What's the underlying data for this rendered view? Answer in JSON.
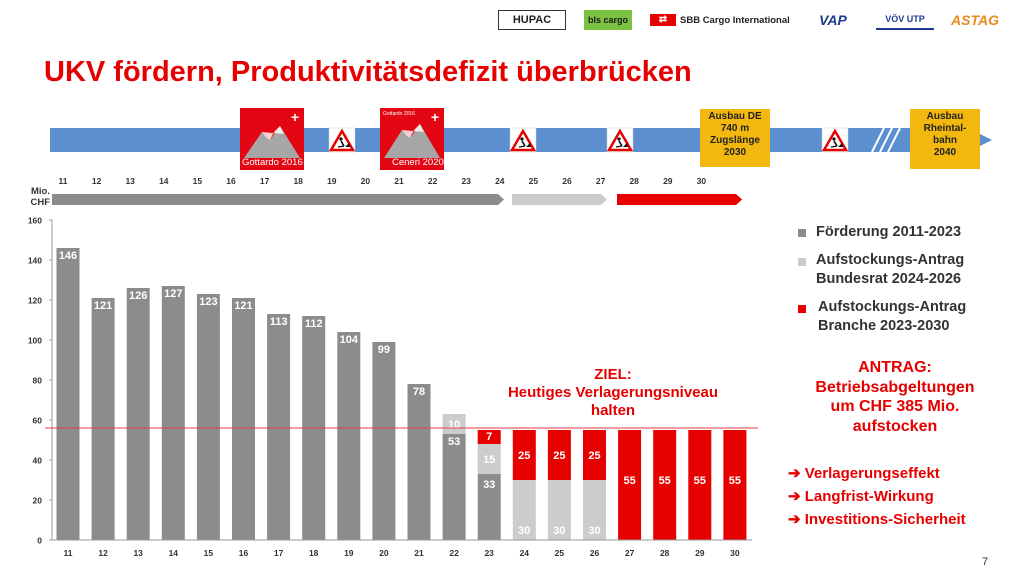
{
  "logos": [
    "HUPAC",
    "bls cargo",
    "SBB Cargo International",
    "VAP",
    "VÖV UTP",
    "ASTAG"
  ],
  "title": "UKV fördern, Produktivitätsdefizit überbrücken",
  "timeline": {
    "gottardo_label": "Gottardo 2016",
    "ceneri_label": "Ceneri 2020",
    "ceneri_small": "Gottardo 2016",
    "milestone_de": [
      "Ausbau DE",
      "740 m",
      "Zugslänge",
      "2030"
    ],
    "milestone_rheintal": [
      "Ausbau",
      "Rheintal-",
      "bahn",
      "2040"
    ]
  },
  "legend": {
    "item1": "Förderung 2011-2023",
    "item2_line1": "Aufstockungs-Antrag",
    "item2_line2": "Bundesrat 2024-2026",
    "item3_line1": "Aufstockungs-Antrag",
    "item3_line2": "Branche 2023-2030"
  },
  "goal_note": [
    "ZIEL:",
    "Heutiges Verlagerungsniveau",
    "halten"
  ],
  "antrag_note": [
    "ANTRAG:",
    "Betriebsabgeltungen",
    "um CHF 385 Mio.",
    "aufstocken"
  ],
  "bullets": [
    "➔ Verlagerungseffekt",
    "➔ Langfrist-Wirkung",
    "➔ Investitions-Sicherheit"
  ],
  "page_number": "7",
  "colors": {
    "red": "#e60000",
    "dark_gray": "#8c8c8c",
    "light_gray": "#cccccc",
    "blue": "#5b8fd0",
    "gold": "#f2b80f"
  },
  "chart_data": {
    "type": "bar",
    "stacked": true,
    "ylabel": "Mio. CHF",
    "ylim": [
      0,
      160
    ],
    "yticks": [
      0,
      20,
      40,
      60,
      80,
      100,
      120,
      140,
      160
    ],
    "categories": [
      "11",
      "12",
      "13",
      "14",
      "15",
      "16",
      "17",
      "18",
      "19",
      "20",
      "21",
      "22",
      "23",
      "24",
      "25",
      "26",
      "27",
      "28",
      "29",
      "30"
    ],
    "series": [
      {
        "name": "Förderung 2011-2023",
        "color": "#8c8c8c",
        "values": [
          146,
          121,
          126,
          127,
          123,
          121,
          113,
          112,
          104,
          99,
          78,
          53,
          33,
          0,
          0,
          0,
          0,
          0,
          0,
          0
        ]
      },
      {
        "name": "Aufstockungs-Antrag Bundesrat 2024-2026",
        "color": "#cccccc",
        "values": [
          0,
          0,
          0,
          0,
          0,
          0,
          0,
          0,
          0,
          0,
          0,
          10,
          15,
          30,
          30,
          30,
          0,
          0,
          0,
          0
        ]
      },
      {
        "name": "Aufstockungs-Antrag Branche 2023-2030",
        "color": "#e60000",
        "values": [
          0,
          0,
          0,
          0,
          0,
          0,
          0,
          0,
          0,
          0,
          0,
          0,
          7,
          25,
          25,
          25,
          55,
          55,
          55,
          55
        ]
      }
    ],
    "reference_line": 56
  }
}
